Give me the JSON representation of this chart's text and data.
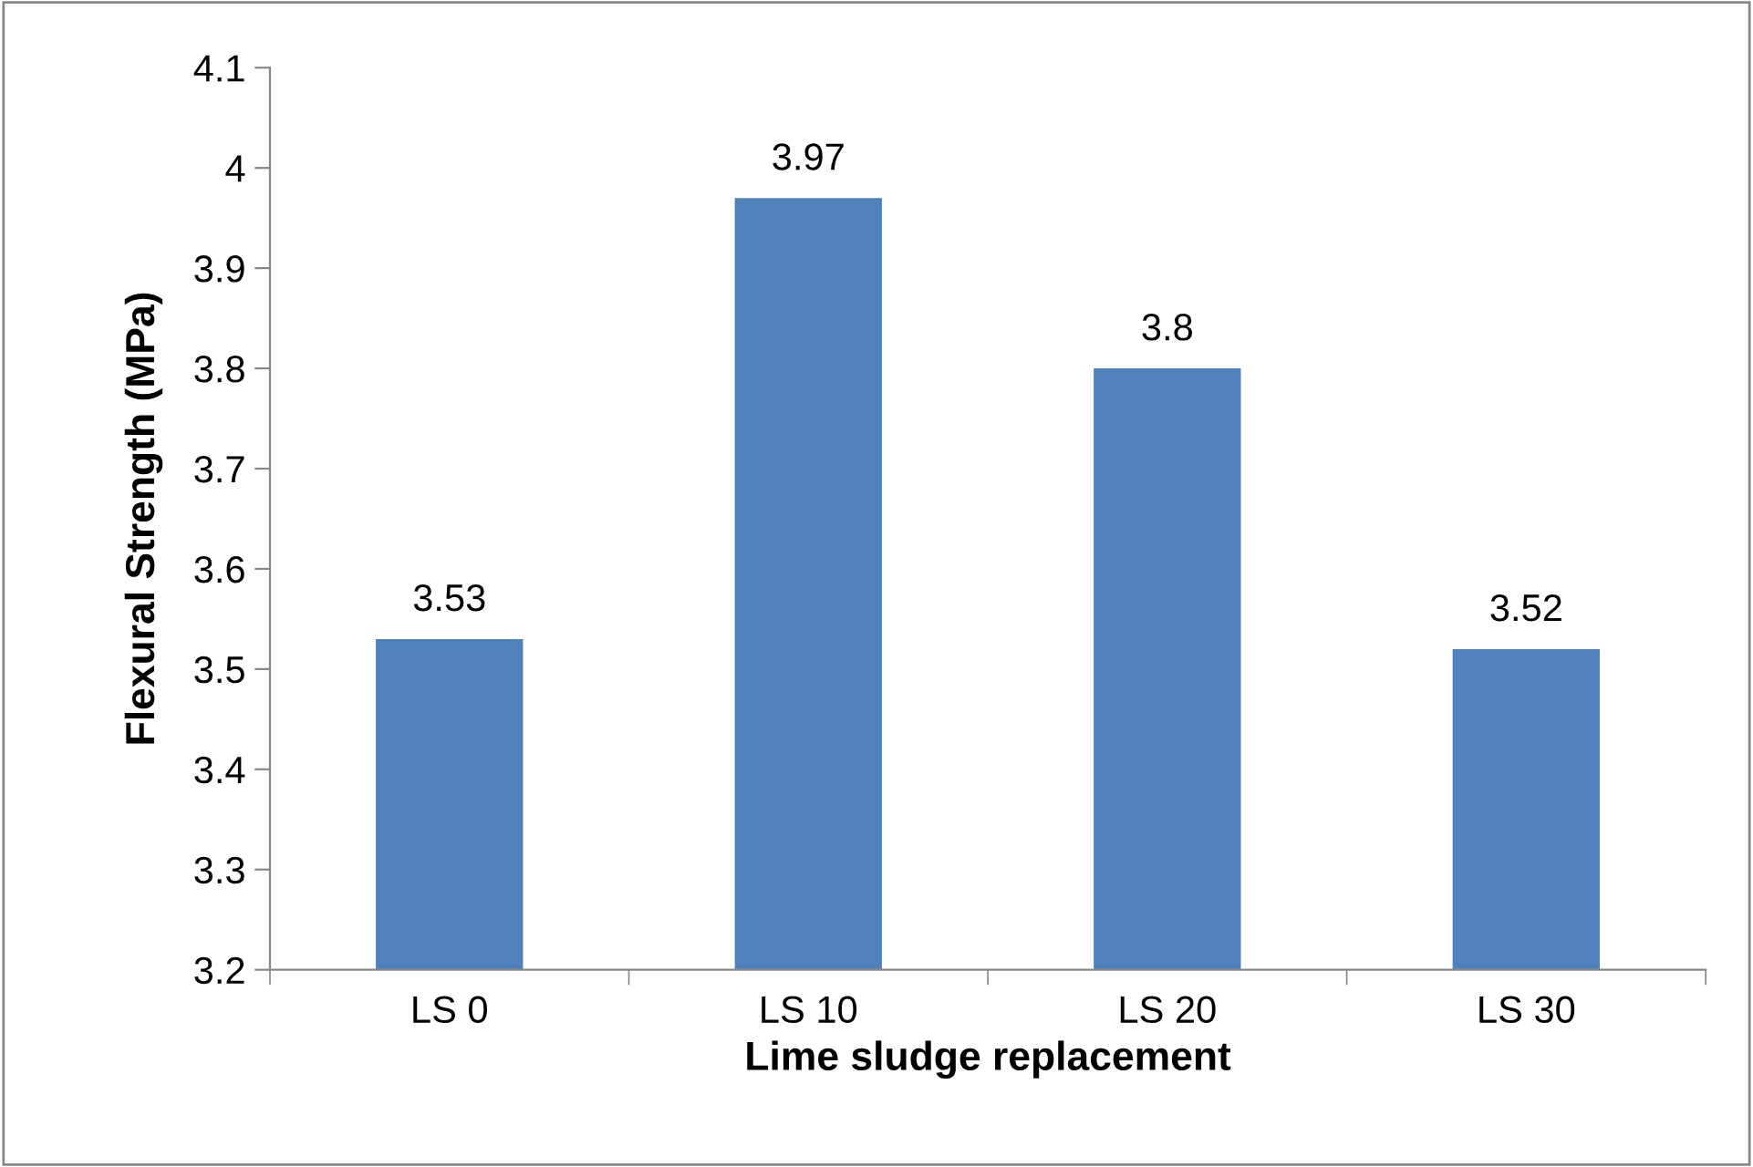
{
  "chart_data": {
    "type": "bar",
    "categories": [
      "LS 0",
      "LS 10",
      "LS 20",
      "LS 30"
    ],
    "values": [
      3.53,
      3.97,
      3.8,
      3.52
    ],
    "color": "#4f81bd",
    "xlabel": "Lime sludge replacement",
    "ylabel": "Flexural Strength (MPa)",
    "ylim": [
      3.2,
      4.1
    ],
    "yticks": [
      3.2,
      3.3,
      3.4,
      3.5,
      3.6,
      3.7,
      3.8,
      3.9,
      4,
      4.1
    ],
    "data_labels": true,
    "grid": false
  }
}
